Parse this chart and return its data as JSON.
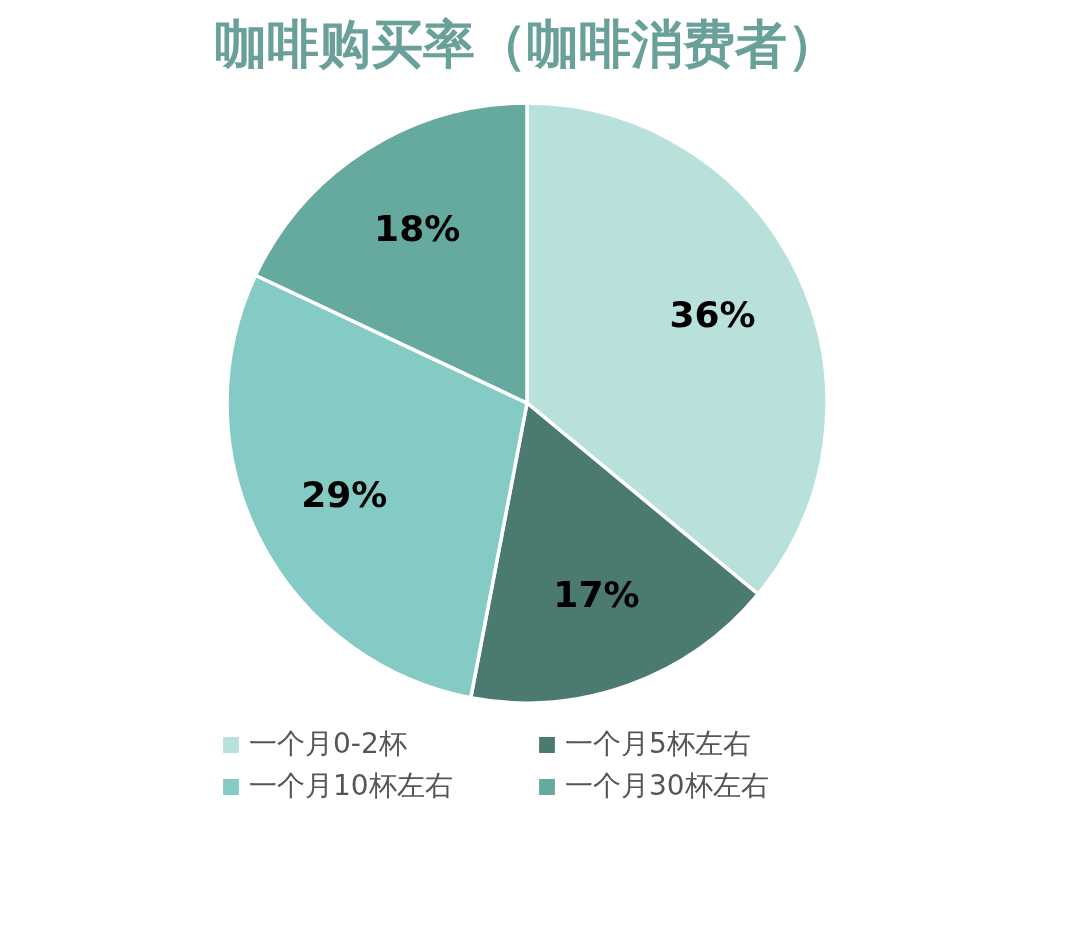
{
  "chart_data": {
    "type": "pie",
    "title": "咖啡购买率（咖啡消费者）",
    "categories": [
      "一个月0-2杯",
      "一个月5杯左右",
      "一个月10杯左右",
      "一个月30杯左右"
    ],
    "values": [
      36,
      17,
      29,
      18
    ],
    "value_labels": [
      "36%",
      "17%",
      "29%",
      "18%"
    ],
    "colors": [
      "#b9e1dc",
      "#4a7a70",
      "#83cbc4",
      "#66a99e"
    ],
    "legend": "bottom"
  }
}
